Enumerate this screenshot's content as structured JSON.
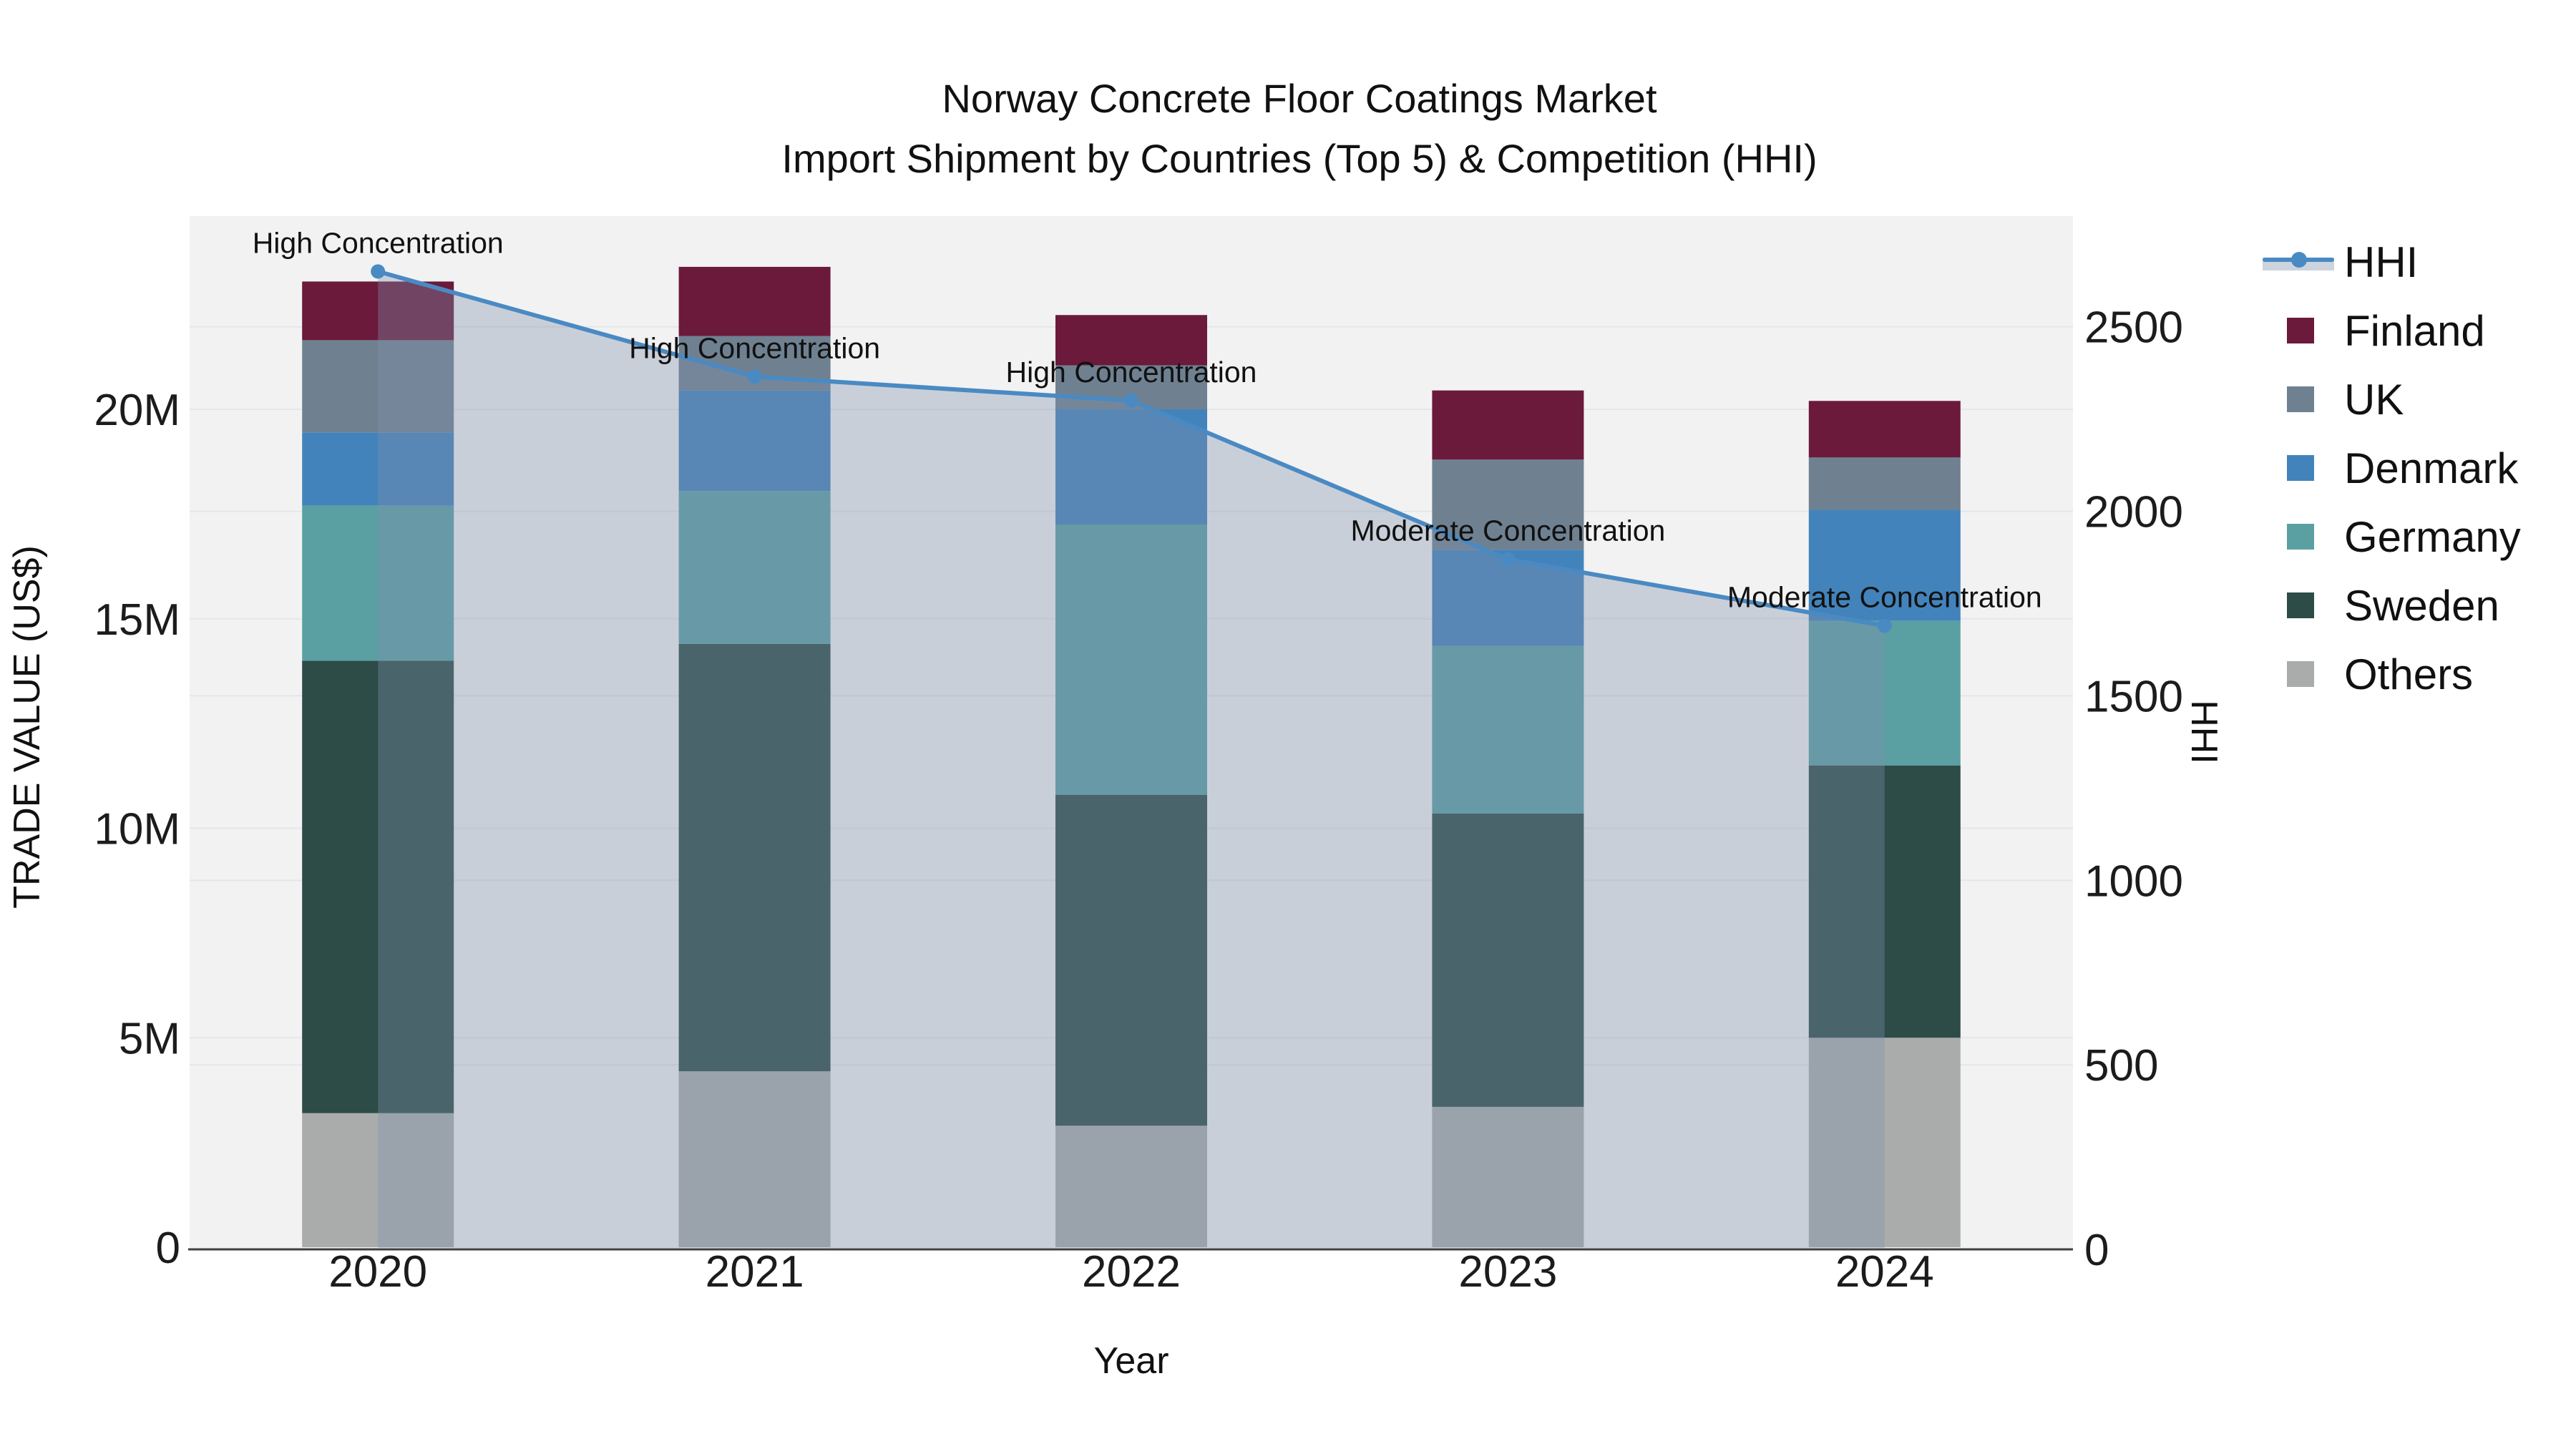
{
  "title": {
    "line1": "Norway Concrete Floor Coatings Market",
    "line2": "Import Shipment by Countries (Top 5) & Competition (HHI)"
  },
  "axes": {
    "x_title": "Year",
    "y_left_title": "TRADE VALUE (US$)",
    "y_right_title": "HHI"
  },
  "legend": {
    "items": [
      {
        "label": "HHI",
        "color": "#4a8ac3",
        "kind": "line"
      },
      {
        "label": "Finland",
        "color": "#6b1a3b",
        "kind": "swatch"
      },
      {
        "label": "UK",
        "color": "#6f8191",
        "kind": "swatch"
      },
      {
        "label": "Denmark",
        "color": "#4383bb",
        "kind": "swatch"
      },
      {
        "label": "Germany",
        "color": "#5aa0a3",
        "kind": "swatch"
      },
      {
        "label": "Sweden",
        "color": "#2d4b47",
        "kind": "swatch"
      },
      {
        "label": "Others",
        "color": "#aaacab",
        "kind": "swatch"
      }
    ]
  },
  "chart_data": {
    "type": "combo",
    "subtypes": [
      "stacked-bar",
      "line-with-area"
    ],
    "title": "Norway Concrete Floor Coatings Market — Import Shipment by Countries (Top 5) & Competition (HHI)",
    "xlabel": "Year",
    "ylabel_left": "TRADE VALUE (US$)",
    "ylabel_right": "HHI",
    "unit_left": "USD millions",
    "categories": [
      "2020",
      "2021",
      "2022",
      "2023",
      "2024"
    ],
    "series": [
      {
        "name": "Others",
        "axis": "left",
        "color": "#aaacab",
        "values": [
          3.2,
          4.2,
          2.9,
          3.35,
          5.0
        ]
      },
      {
        "name": "Sweden",
        "axis": "left",
        "color": "#2d4b47",
        "values": [
          10.8,
          10.2,
          7.9,
          7.0,
          6.5
        ]
      },
      {
        "name": "Germany",
        "axis": "left",
        "color": "#5aa0a3",
        "values": [
          3.7,
          3.65,
          6.45,
          4.0,
          3.45
        ]
      },
      {
        "name": "Denmark",
        "axis": "left",
        "color": "#4383bb",
        "values": [
          1.75,
          2.4,
          2.75,
          2.3,
          2.65
        ]
      },
      {
        "name": "UK",
        "axis": "left",
        "color": "#6f8191",
        "values": [
          2.2,
          1.3,
          1.05,
          2.15,
          1.25
        ]
      },
      {
        "name": "Finland",
        "axis": "left",
        "color": "#6b1a3b",
        "values": [
          1.4,
          1.65,
          1.2,
          1.65,
          1.35
        ]
      }
    ],
    "totals_left": [
      23.05,
      23.4,
      22.25,
      20.45,
      20.2
    ],
    "hhi_series": {
      "name": "HHI",
      "axis": "right",
      "color": "#4a8ac3",
      "area_fill": "rgba(128,145,172,0.36)",
      "values": [
        2650,
        2365,
        2300,
        1870,
        1690
      ]
    },
    "annotations": [
      {
        "category": "2020",
        "text": "High Concentration"
      },
      {
        "category": "2021",
        "text": "High Concentration"
      },
      {
        "category": "2022",
        "text": "High Concentration"
      },
      {
        "category": "2023",
        "text": "Moderate Concentration"
      },
      {
        "category": "2024",
        "text": "Moderate Concentration"
      }
    ],
    "y_left_ticks": [
      {
        "v": 0,
        "label": "0"
      },
      {
        "v": 5,
        "label": "5M"
      },
      {
        "v": 10,
        "label": "10M"
      },
      {
        "v": 15,
        "label": "15M"
      },
      {
        "v": 20,
        "label": "20M"
      }
    ],
    "y_right_ticks": [
      {
        "v": 0,
        "label": "0"
      },
      {
        "v": 500,
        "label": "500"
      },
      {
        "v": 1000,
        "label": "1000"
      },
      {
        "v": 1500,
        "label": "1500"
      },
      {
        "v": 2000,
        "label": "2000"
      },
      {
        "v": 2500,
        "label": "2500"
      }
    ],
    "y_left_range": [
      0,
      24.6
    ],
    "y_right_range": [
      0,
      2810
    ],
    "grid": true,
    "legend_position": "right",
    "style": {
      "plot_bg": "#f2f2f3",
      "grid_color": "#e4e6e8",
      "axis_line_color": "#3f3f3f",
      "text_color": "#1c1c1c",
      "annotation_color": "#111111"
    }
  }
}
